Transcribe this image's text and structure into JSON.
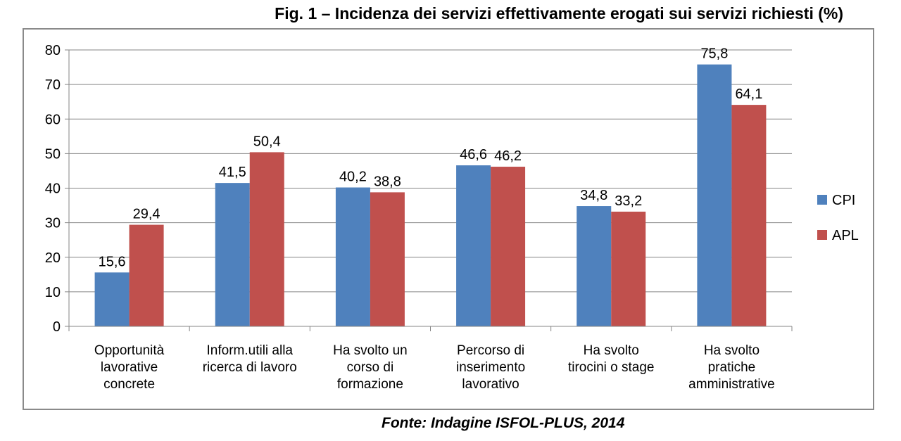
{
  "figure": {
    "title": "Fig. 1 – Incidenza dei servizi effettivamente erogati sui servizi richiesti (%)",
    "source": "Fonte: Indagine ISFOL-PLUS, 2014"
  },
  "chart_data": {
    "type": "bar",
    "title": "Fig. 1 – Incidenza dei servizi effettivamente erogati sui servizi richiesti (%)",
    "xlabel": "",
    "ylabel": "",
    "ylim": [
      0,
      80
    ],
    "yticks": [
      0,
      10,
      20,
      30,
      40,
      50,
      60,
      70,
      80
    ],
    "grid": true,
    "legend_position": "right",
    "categories": [
      [
        "Opportunità",
        "lavorative",
        "concrete"
      ],
      [
        "Inform.utili alla",
        "ricerca di lavoro"
      ],
      [
        "Ha svolto un",
        "corso di",
        "formazione"
      ],
      [
        "Percorso di",
        "inserimento",
        "lavorativo"
      ],
      [
        "Ha svolto",
        "tirocini o stage"
      ],
      [
        "Ha svolto",
        "pratiche",
        "amministrative"
      ]
    ],
    "series": [
      {
        "name": "CPI",
        "color": "#4f81bd",
        "values": [
          15.6,
          41.5,
          40.2,
          46.6,
          34.8,
          75.8
        ],
        "labels": [
          "15,6",
          "41,5",
          "40,2",
          "46,6",
          "34,8",
          "75,8"
        ]
      },
      {
        "name": "APL",
        "color": "#c0504d",
        "values": [
          29.4,
          50.4,
          38.8,
          46.2,
          33.2,
          64.1
        ],
        "labels": [
          "29,4",
          "50,4",
          "38,8",
          "46,2",
          "33,2",
          "64,1"
        ]
      }
    ]
  }
}
